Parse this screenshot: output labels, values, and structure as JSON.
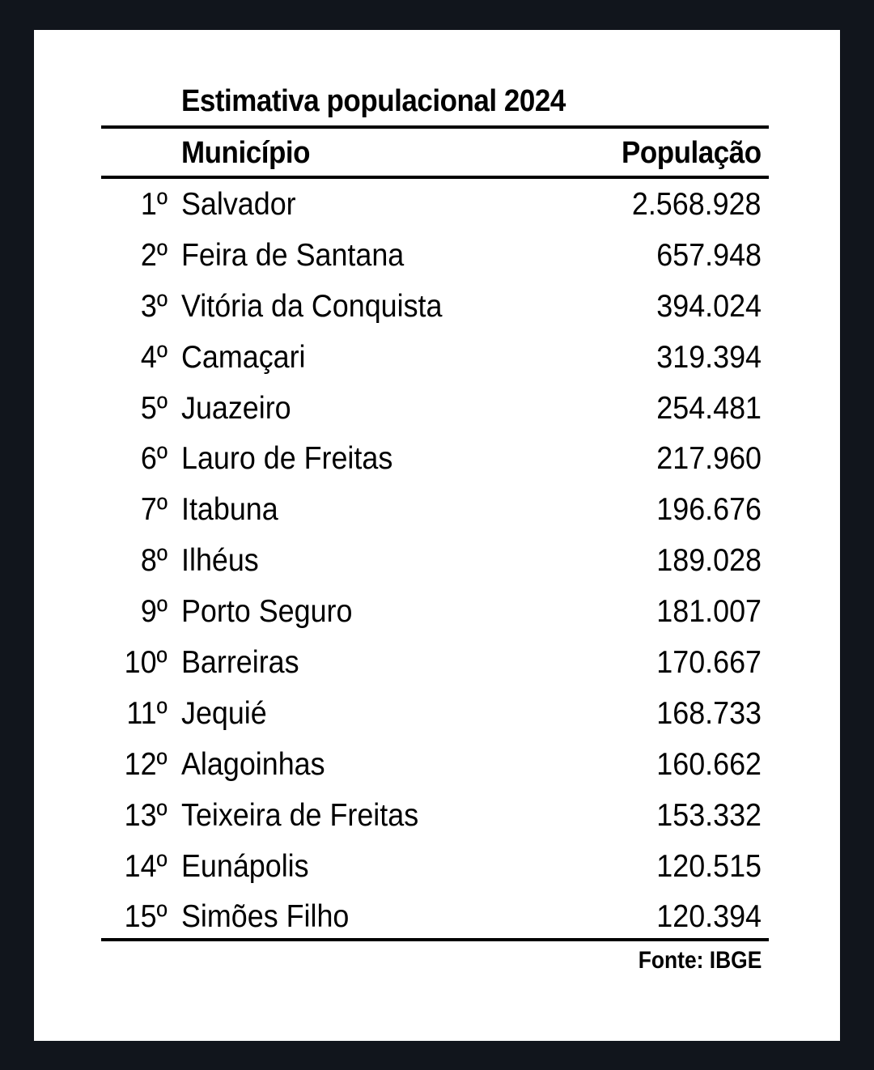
{
  "title": "Estimativa populacional 2024",
  "columns": {
    "municipality": "Município",
    "population": "População"
  },
  "rows": [
    {
      "rank": "1º",
      "name": "Salvador",
      "population": "2.568.928"
    },
    {
      "rank": "2º",
      "name": "Feira de Santana",
      "population": "657.948"
    },
    {
      "rank": "3º",
      "name": "Vitória da Conquista",
      "population": "394.024"
    },
    {
      "rank": "4º",
      "name": "Camaçari",
      "population": "319.394"
    },
    {
      "rank": "5º",
      "name": "Juazeiro",
      "population": "254.481"
    },
    {
      "rank": "6º",
      "name": "Lauro de Freitas",
      "population": "217.960"
    },
    {
      "rank": "7º",
      "name": "Itabuna",
      "population": "196.676"
    },
    {
      "rank": "8º",
      "name": "Ilhéus",
      "population": "189.028"
    },
    {
      "rank": "9º",
      "name": "Porto Seguro",
      "population": "181.007"
    },
    {
      "rank": "10º",
      "name": "Barreiras",
      "population": "170.667"
    },
    {
      "rank": "11º",
      "name": "Jequié",
      "population": "168.733"
    },
    {
      "rank": "12º",
      "name": "Alagoinhas",
      "population": "160.662"
    },
    {
      "rank": "13º",
      "name": "Teixeira de Freitas",
      "population": "153.332"
    },
    {
      "rank": "14º",
      "name": "Eunápolis",
      "population": "120.515"
    },
    {
      "rank": "15º",
      "name": "Simões Filho",
      "population": "120.394"
    }
  ],
  "source": "Fonte: IBGE",
  "colors": {
    "background": "#11151c",
    "card": "#ffffff",
    "text": "#000000",
    "rule": "#000000"
  }
}
